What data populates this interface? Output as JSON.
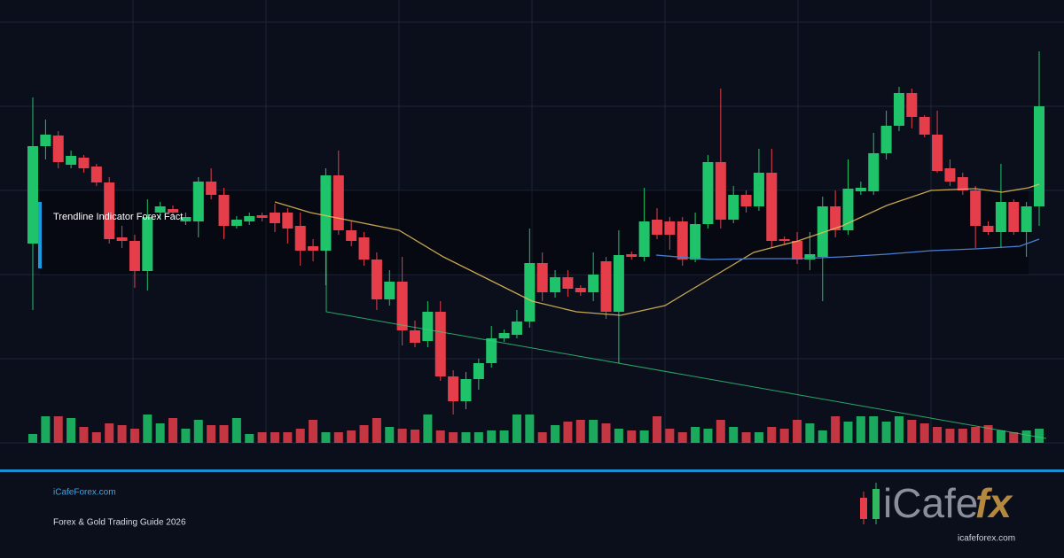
{
  "header": {
    "title": "Trendline Indicator Forex Fact"
  },
  "footer": {
    "site": "iCafeForex.com",
    "tagline": "Forex & Gold Trading Guide 2026"
  },
  "logo": {
    "brand": "iCafe",
    "mark": "fx",
    "url": "icafeforex.com"
  },
  "chart_data": {
    "type": "candlestick",
    "ylim": [
      0,
      475
    ],
    "vlim": [
      0,
      95
    ],
    "up_color": "#1fc46a",
    "down_color": "#e63d4a",
    "open": [
      225,
      335,
      347,
      314,
      322,
      312,
      294,
      232,
      228,
      194,
      260,
      264,
      250,
      250,
      295,
      280,
      245,
      250,
      257,
      260,
      260,
      245,
      222,
      217,
      302,
      240,
      232,
      207,
      162,
      182,
      127,
      115,
      148,
      75,
      47,
      72,
      90,
      118,
      122,
      137,
      203,
      170,
      187,
      175,
      170,
      205,
      148,
      213,
      210,
      252,
      250,
      250,
      207,
      247,
      317,
      252,
      280,
      267,
      305,
      230,
      228,
      207,
      210,
      267,
      240,
      284,
      284,
      327,
      358,
      395,
      368,
      348,
      310,
      300,
      285,
      245,
      238,
      272,
      238,
      267
    ],
    "high": [
      390,
      365,
      352,
      330,
      325,
      315,
      300,
      245,
      235,
      275,
      272,
      268,
      260,
      300,
      310,
      288,
      256,
      260,
      260,
      270,
      265,
      260,
      230,
      310,
      330,
      250,
      238,
      215,
      195,
      210,
      138,
      160,
      160,
      82,
      80,
      95,
      132,
      128,
      150,
      242,
      215,
      195,
      195,
      178,
      215,
      210,
      240,
      216,
      288,
      265,
      255,
      255,
      260,
      325,
      400,
      290,
      285,
      332,
      332,
      233,
      238,
      238,
      278,
      285,
      320,
      295,
      350,
      375,
      402,
      400,
      370,
      375,
      320,
      305,
      290,
      250,
      315,
      275,
      272,
      442
    ],
    "low": [
      150,
      320,
      310,
      310,
      305,
      290,
      225,
      220,
      175,
      172,
      252,
      256,
      246,
      232,
      275,
      230,
      242,
      246,
      250,
      238,
      225,
      200,
      205,
      178,
      235,
      222,
      200,
      150,
      155,
      110,
      108,
      108,
      70,
      32,
      38,
      60,
      85,
      114,
      118,
      130,
      160,
      164,
      165,
      166,
      160,
      140,
      90,
      207,
      205,
      230,
      218,
      200,
      204,
      242,
      242,
      248,
      260,
      262,
      220,
      224,
      202,
      195,
      160,
      232,
      235,
      280,
      280,
      320,
      352,
      355,
      345,
      305,
      290,
      280,
      220,
      235,
      220,
      235,
      210,
      245
    ],
    "close": [
      335,
      348,
      317,
      324,
      310,
      294,
      230,
      228,
      194,
      255,
      267,
      260,
      255,
      295,
      280,
      245,
      252,
      256,
      254,
      248,
      242,
      217,
      217,
      302,
      240,
      228,
      207,
      162,
      182,
      127,
      113,
      148,
      75,
      47,
      72,
      90,
      118,
      124,
      137,
      203,
      170,
      187,
      174,
      170,
      190,
      148,
      212,
      210,
      250,
      235,
      235,
      207,
      247,
      317,
      252,
      280,
      267,
      305,
      228,
      228,
      207,
      213,
      267,
      240,
      287,
      288,
      327,
      358,
      395,
      368,
      348,
      307,
      295,
      285,
      245,
      238,
      272,
      238,
      267,
      380
    ],
    "volume": [
      10,
      30,
      30,
      28,
      18,
      12,
      22,
      20,
      16,
      32,
      22,
      28,
      16,
      26,
      20,
      20,
      28,
      10,
      12,
      12,
      12,
      16,
      26,
      12,
      12,
      14,
      20,
      28,
      18,
      16,
      15,
      32,
      14,
      12,
      12,
      12,
      14,
      14,
      32,
      32,
      12,
      20,
      24,
      26,
      26,
      22,
      16,
      14,
      14,
      30,
      16,
      12,
      18,
      16,
      26,
      18,
      12,
      12,
      18,
      16,
      26,
      22,
      14,
      30,
      24,
      30,
      30,
      24,
      30,
      26,
      22,
      18,
      16,
      16,
      18,
      20,
      14,
      12,
      14,
      16
    ]
  }
}
